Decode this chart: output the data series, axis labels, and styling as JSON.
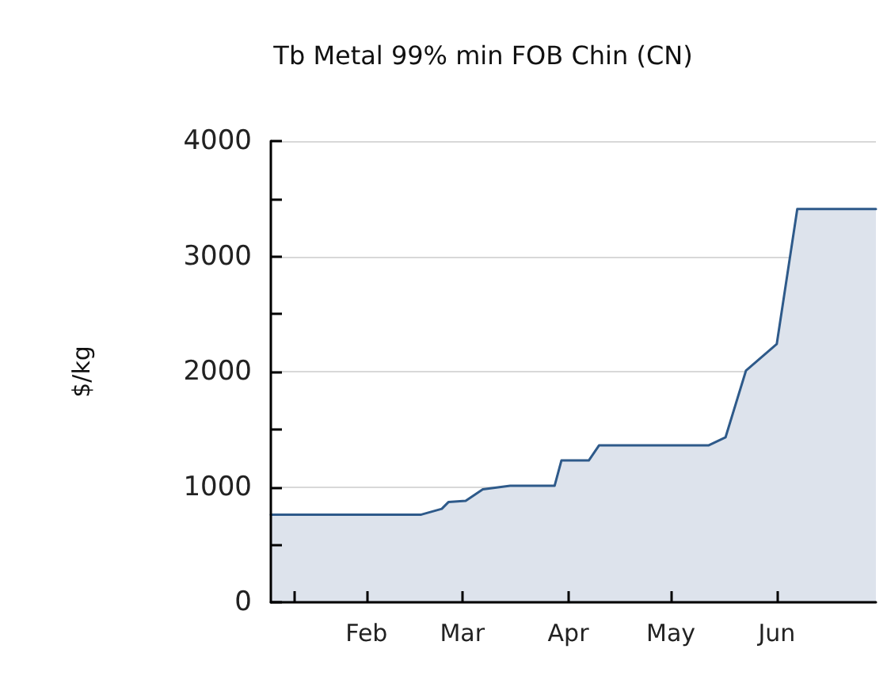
{
  "chart_data": {
    "type": "area",
    "title": "Tb Metal 99% min FOB Chin (CN)",
    "ylabel": "$/kg",
    "x": [
      "--01-04",
      "--02-17",
      "--02-23",
      "--02-25",
      "--03-02",
      "--03-07",
      "--03-15",
      "--03-28",
      "--03-30",
      "--04-07",
      "--04-10",
      "--05-12",
      "--05-17",
      "--05-23",
      "--06-01",
      "--06-07",
      "--06-30"
    ],
    "series": [
      {
        "color": "#2e5a8a",
        "values": [
          760,
          760,
          810,
          870,
          880,
          980,
          1010,
          1010,
          1230,
          1230,
          1360,
          1360,
          1430,
          2010,
          2240,
          3410,
          3410
        ]
      }
    ],
    "xlim": [
      "--01-04",
      "--06-30"
    ],
    "xticks": [
      {
        "value": "--01-11",
        "label": null
      },
      {
        "value": "--02-01",
        "label": "Feb"
      },
      {
        "value": "--03-01",
        "label": "Mar"
      },
      {
        "value": "--04-01",
        "label": "Apr"
      },
      {
        "value": "--05-01",
        "label": "May"
      },
      {
        "value": "--06-01",
        "label": "Jun"
      }
    ],
    "ylim": [
      0,
      4000
    ],
    "yticks": [
      0,
      {
        "value": 500,
        "label": null
      },
      1000,
      {
        "value": 1500,
        "label": null
      },
      2000,
      {
        "value": 2500,
        "label": null
      },
      3000,
      {
        "value": 3500,
        "label": null
      },
      4000
    ],
    "grid": "y",
    "marker": "none",
    "line_style": "solid"
  }
}
